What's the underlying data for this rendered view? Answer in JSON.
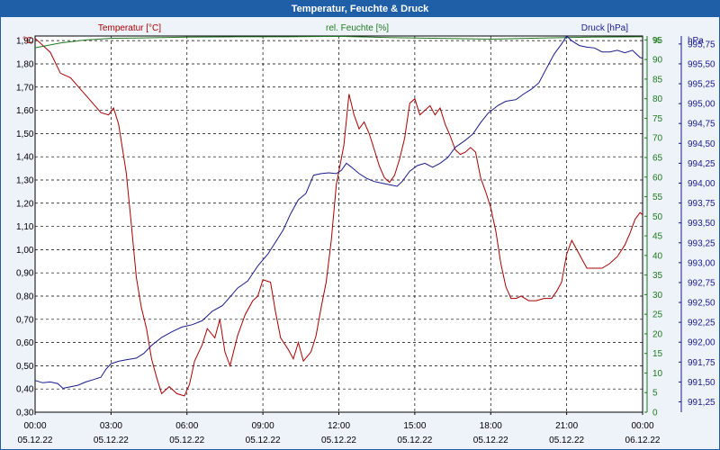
{
  "window": {
    "title": "Temperatur, Feuchte & Druck"
  },
  "chart_data": {
    "type": "line",
    "title": "Temperatur, Feuchte & Druck",
    "x_labels": [
      {
        "time": "00:00",
        "date": "05.12.22"
      },
      {
        "time": "03:00",
        "date": "05.12.22"
      },
      {
        "time": "06:00",
        "date": "05.12.22"
      },
      {
        "time": "09:00",
        "date": "05.12.22"
      },
      {
        "time": "12:00",
        "date": "05.12.22"
      },
      {
        "time": "15:00",
        "date": "05.12.22"
      },
      {
        "time": "18:00",
        "date": "05.12.22"
      },
      {
        "time": "21:00",
        "date": "05.12.22"
      },
      {
        "time": "00:00",
        "date": "06.12.22"
      }
    ],
    "x_range_hours": [
      0,
      24
    ],
    "grid": true,
    "axes": {
      "temperature": {
        "unit": "°C",
        "range": [
          0.3,
          1.92
        ],
        "ticks": [
          "1,90",
          "1,80",
          "1,70",
          "1,60",
          "1,50",
          "1,40",
          "1,30",
          "1,20",
          "1,10",
          "1,00",
          "0,90",
          "0,80",
          "0,70",
          "0,60",
          "0,50",
          "0,40",
          "0,30"
        ]
      },
      "humidity": {
        "unit": "%",
        "range": [
          0,
          96
        ],
        "ticks": [
          "95",
          "90",
          "85",
          "80",
          "75",
          "70",
          "65",
          "60",
          "55",
          "50",
          "45",
          "40",
          "35",
          "30",
          "25",
          "20",
          "15",
          "10",
          "5",
          "0"
        ]
      },
      "pressure": {
        "unit": "hPa",
        "range": [
          991.12,
          995.85
        ],
        "ticks": [
          "995,75",
          "995,50",
          "995,25",
          "995,00",
          "994,75",
          "994,50",
          "994,25",
          "994,00",
          "993,75",
          "993,50",
          "993,25",
          "993,00",
          "992,75",
          "992,50",
          "992,25",
          "992,00",
          "991,75",
          "991,50",
          "991,25"
        ]
      }
    },
    "series": [
      {
        "name": "Temperatur [°C]",
        "axis": "temperature",
        "color": "#aa0000",
        "points": [
          [
            0,
            1.91
          ],
          [
            0.3,
            1.88
          ],
          [
            0.6,
            1.85
          ],
          [
            1,
            1.76
          ],
          [
            1.4,
            1.74
          ],
          [
            1.8,
            1.69
          ],
          [
            2.2,
            1.64
          ],
          [
            2.6,
            1.59
          ],
          [
            2.9,
            1.58
          ],
          [
            3.1,
            1.61
          ],
          [
            3.3,
            1.54
          ],
          [
            3.6,
            1.33
          ],
          [
            3.8,
            1.11
          ],
          [
            4,
            0.88
          ],
          [
            4.2,
            0.75
          ],
          [
            4.4,
            0.66
          ],
          [
            4.6,
            0.53
          ],
          [
            4.8,
            0.45
          ],
          [
            5,
            0.38
          ],
          [
            5.3,
            0.41
          ],
          [
            5.6,
            0.38
          ],
          [
            5.9,
            0.37
          ],
          [
            6.1,
            0.42
          ],
          [
            6.3,
            0.52
          ],
          [
            6.6,
            0.59
          ],
          [
            6.8,
            0.66
          ],
          [
            7.1,
            0.62
          ],
          [
            7.3,
            0.7
          ],
          [
            7.5,
            0.56
          ],
          [
            7.7,
            0.5
          ],
          [
            8,
            0.63
          ],
          [
            8.3,
            0.72
          ],
          [
            8.6,
            0.78
          ],
          [
            8.8,
            0.8
          ],
          [
            9,
            0.87
          ],
          [
            9.3,
            0.86
          ],
          [
            9.5,
            0.73
          ],
          [
            9.7,
            0.62
          ],
          [
            10,
            0.57
          ],
          [
            10.2,
            0.53
          ],
          [
            10.4,
            0.6
          ],
          [
            10.6,
            0.52
          ],
          [
            10.9,
            0.56
          ],
          [
            11.1,
            0.63
          ],
          [
            11.3,
            0.75
          ],
          [
            11.5,
            0.86
          ],
          [
            11.7,
            1.04
          ],
          [
            11.9,
            1.28
          ],
          [
            12.2,
            1.45
          ],
          [
            12.4,
            1.67
          ],
          [
            12.6,
            1.58
          ],
          [
            12.8,
            1.52
          ],
          [
            13,
            1.55
          ],
          [
            13.2,
            1.5
          ],
          [
            13.4,
            1.43
          ],
          [
            13.6,
            1.36
          ],
          [
            13.8,
            1.31
          ],
          [
            14,
            1.29
          ],
          [
            14.2,
            1.32
          ],
          [
            14.4,
            1.39
          ],
          [
            14.6,
            1.48
          ],
          [
            14.8,
            1.63
          ],
          [
            15,
            1.65
          ],
          [
            15.2,
            1.58
          ],
          [
            15.4,
            1.6
          ],
          [
            15.6,
            1.62
          ],
          [
            15.8,
            1.58
          ],
          [
            16,
            1.61
          ],
          [
            16.2,
            1.54
          ],
          [
            16.4,
            1.49
          ],
          [
            16.6,
            1.43
          ],
          [
            16.8,
            1.41
          ],
          [
            17,
            1.42
          ],
          [
            17.2,
            1.44
          ],
          [
            17.4,
            1.42
          ],
          [
            17.6,
            1.31
          ],
          [
            17.8,
            1.25
          ],
          [
            18,
            1.18
          ],
          [
            18.2,
            1.08
          ],
          [
            18.4,
            0.94
          ],
          [
            18.6,
            0.84
          ],
          [
            18.8,
            0.79
          ],
          [
            19,
            0.79
          ],
          [
            19.2,
            0.8
          ],
          [
            19.5,
            0.78
          ],
          [
            19.8,
            0.78
          ],
          [
            20.1,
            0.79
          ],
          [
            20.4,
            0.79
          ],
          [
            20.6,
            0.82
          ],
          [
            20.8,
            0.86
          ],
          [
            21,
            0.98
          ],
          [
            21.2,
            1.04
          ],
          [
            21.4,
            1.0
          ],
          [
            21.6,
            0.96
          ],
          [
            21.8,
            0.92
          ],
          [
            22.1,
            0.92
          ],
          [
            22.4,
            0.92
          ],
          [
            22.7,
            0.94
          ],
          [
            23,
            0.97
          ],
          [
            23.3,
            1.02
          ],
          [
            23.5,
            1.07
          ],
          [
            23.7,
            1.13
          ],
          [
            23.9,
            1.16
          ],
          [
            24,
            1.15
          ]
        ]
      },
      {
        "name": "rel. Feuchte [%]",
        "axis": "humidity",
        "color": "#1f7a1f",
        "points": [
          [
            0,
            93
          ],
          [
            1,
            94.2
          ],
          [
            2,
            95
          ],
          [
            3,
            95.4
          ],
          [
            4,
            95.5
          ],
          [
            6,
            95.7
          ],
          [
            8,
            95.8
          ],
          [
            10,
            95.8
          ],
          [
            12,
            95.9
          ],
          [
            14,
            95.6
          ],
          [
            16,
            95.4
          ],
          [
            18,
            95.2
          ],
          [
            20,
            95.5
          ],
          [
            22,
            95.7
          ],
          [
            24,
            95.8
          ]
        ]
      },
      {
        "name": "Druck [hPa]",
        "axis": "pressure",
        "color": "#1a1a8c",
        "points": [
          [
            0,
            991.52
          ],
          [
            0.3,
            991.49
          ],
          [
            0.6,
            991.5
          ],
          [
            0.9,
            991.48
          ],
          [
            1.1,
            991.42
          ],
          [
            1.4,
            991.44
          ],
          [
            1.7,
            991.46
          ],
          [
            2,
            991.5
          ],
          [
            2.3,
            991.53
          ],
          [
            2.6,
            991.56
          ],
          [
            2.8,
            991.66
          ],
          [
            3,
            991.73
          ],
          [
            3.3,
            991.76
          ],
          [
            3.6,
            991.78
          ],
          [
            4,
            991.8
          ],
          [
            4.3,
            991.86
          ],
          [
            4.6,
            991.96
          ],
          [
            5,
            992.06
          ],
          [
            5.4,
            992.13
          ],
          [
            5.8,
            992.19
          ],
          [
            6.2,
            992.22
          ],
          [
            6.6,
            992.27
          ],
          [
            7,
            992.39
          ],
          [
            7.4,
            992.46
          ],
          [
            7.7,
            992.57
          ],
          [
            8,
            992.68
          ],
          [
            8.4,
            992.77
          ],
          [
            8.8,
            992.96
          ],
          [
            9.2,
            993.11
          ],
          [
            9.5,
            993.26
          ],
          [
            9.8,
            993.41
          ],
          [
            10.1,
            993.62
          ],
          [
            10.4,
            993.79
          ],
          [
            10.7,
            993.87
          ],
          [
            11,
            994.1
          ],
          [
            11.3,
            994.12
          ],
          [
            11.6,
            994.13
          ],
          [
            11.9,
            994.12
          ],
          [
            12.1,
            994.16
          ],
          [
            12.3,
            994.25
          ],
          [
            12.5,
            994.2
          ],
          [
            12.8,
            994.12
          ],
          [
            13.1,
            994.06
          ],
          [
            13.4,
            994.02
          ],
          [
            13.7,
            994.0
          ],
          [
            14,
            993.98
          ],
          [
            14.3,
            993.96
          ],
          [
            14.5,
            994.02
          ],
          [
            14.8,
            994.15
          ],
          [
            15.1,
            994.22
          ],
          [
            15.4,
            994.25
          ],
          [
            15.7,
            994.2
          ],
          [
            16,
            994.25
          ],
          [
            16.3,
            994.32
          ],
          [
            16.6,
            994.45
          ],
          [
            17,
            994.54
          ],
          [
            17.3,
            994.62
          ],
          [
            17.6,
            994.76
          ],
          [
            17.9,
            994.88
          ],
          [
            18.3,
            994.98
          ],
          [
            18.6,
            995.03
          ],
          [
            19,
            995.05
          ],
          [
            19.3,
            995.12
          ],
          [
            19.6,
            995.18
          ],
          [
            19.9,
            995.26
          ],
          [
            20.2,
            995.44
          ],
          [
            20.5,
            995.62
          ],
          [
            20.8,
            995.75
          ],
          [
            21,
            995.85
          ],
          [
            21.2,
            995.79
          ],
          [
            21.5,
            995.73
          ],
          [
            21.8,
            995.71
          ],
          [
            22.1,
            995.7
          ],
          [
            22.4,
            995.65
          ],
          [
            22.7,
            995.65
          ],
          [
            23,
            995.67
          ],
          [
            23.3,
            995.64
          ],
          [
            23.6,
            995.67
          ],
          [
            23.9,
            995.58
          ],
          [
            24,
            995.57
          ]
        ]
      }
    ]
  }
}
